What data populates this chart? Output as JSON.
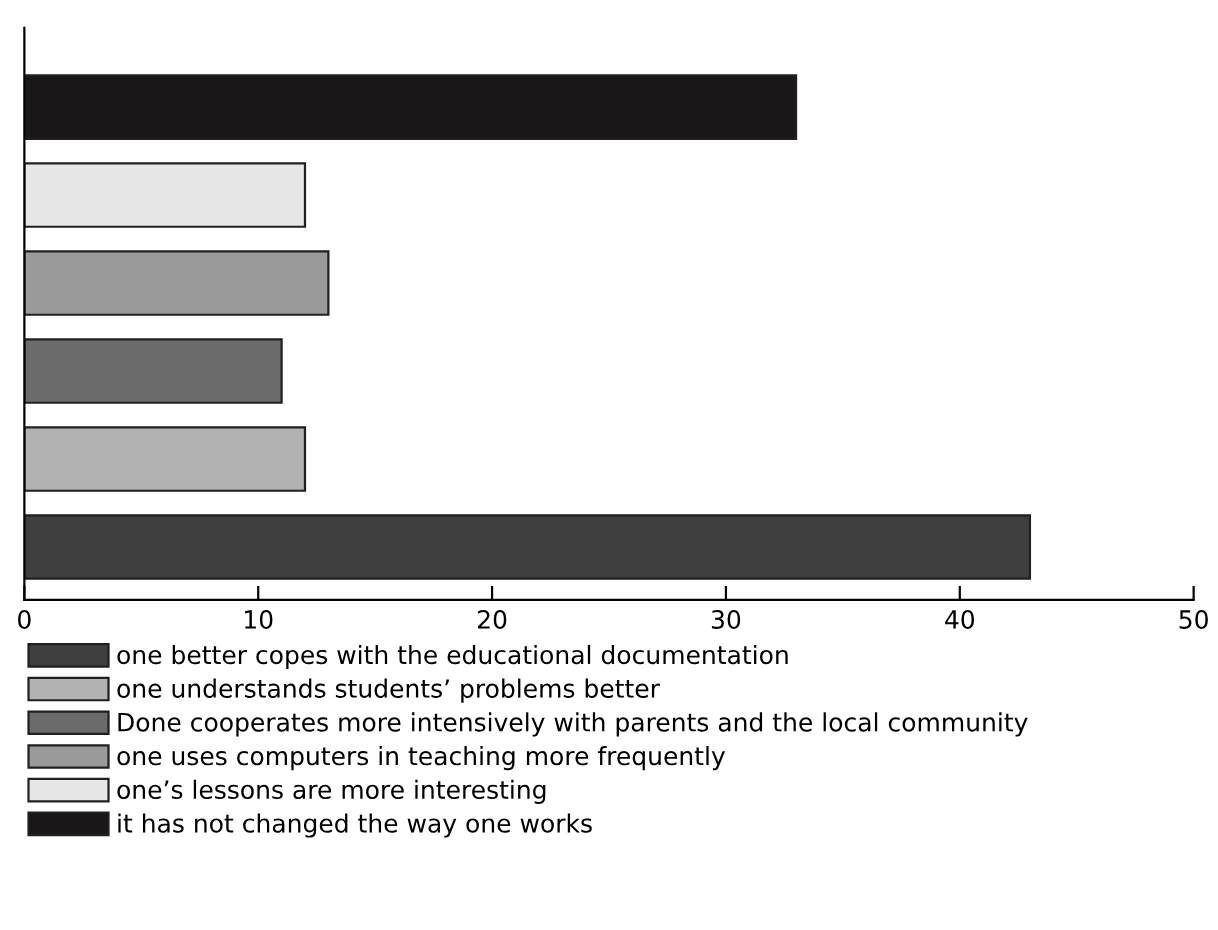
{
  "chart_data": {
    "type": "bar",
    "orientation": "horizontal",
    "categories": [
      null,
      null,
      null,
      null,
      null,
      null
    ],
    "series": [
      {
        "name": "one better copes with the educational documentation",
        "color": "#3f3f3f",
        "values": [
          null,
          null,
          null,
          null,
          null,
          43
        ]
      },
      {
        "name": "one understands students’ problems better",
        "color": "#b2b2b2",
        "values": [
          null,
          null,
          null,
          null,
          12,
          null
        ]
      },
      {
        "name": "Done cooperates more intensively with parents and the local community",
        "color": "#6b6b6b",
        "values": [
          null,
          null,
          null,
          11,
          null,
          null
        ]
      },
      {
        "name": "one uses computers in teaching more frequently",
        "color": "#9a9a9a",
        "values": [
          null,
          null,
          13,
          null,
          null,
          null
        ]
      },
      {
        "name": "one’s lessons are more interesting",
        "color": "#e6e6e6",
        "values": [
          null,
          12,
          null,
          null,
          null,
          null
        ]
      },
      {
        "name": "it has not changed the way one works",
        "color": "#1a1718",
        "values": [
          33,
          null,
          null,
          null,
          null,
          null
        ]
      }
    ],
    "xlim": [
      0,
      50
    ],
    "xticks": [
      0,
      10,
      20,
      30,
      40,
      50
    ],
    "grid": false,
    "legend": "bottom"
  }
}
